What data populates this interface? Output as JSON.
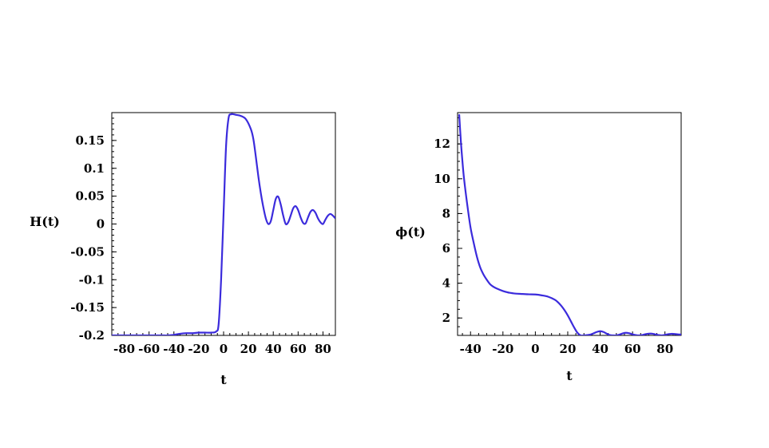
{
  "chart_data": [
    {
      "type": "line",
      "xlabel": "t",
      "ylabel": "H(t)",
      "xlim": [
        -90,
        90
      ],
      "ylim": [
        -0.2,
        0.2
      ],
      "xticks": [
        "-80",
        "-60",
        "-40",
        "-20",
        "0",
        "20",
        "40",
        "60",
        "80"
      ],
      "yticks": [
        "-0.2",
        "-0.15",
        "-0.1",
        "-0.05",
        "0",
        "0.05",
        "0.1",
        "0.15"
      ],
      "line_color": "#3b2bdc",
      "series": [
        {
          "x": [
            -90,
            -80,
            -70,
            -60,
            -50,
            -45,
            -40,
            -35,
            -30,
            -25,
            -20,
            -15,
            -10,
            -6,
            -4,
            -2,
            0,
            2,
            4,
            6,
            8,
            10,
            14,
            18,
            22,
            24,
            26,
            28,
            30,
            32,
            34,
            36,
            38,
            40,
            42,
            44,
            46,
            48,
            50,
            52,
            54,
            56,
            58,
            60,
            62,
            64,
            66,
            68,
            70,
            72,
            74,
            76,
            78,
            80,
            82,
            84,
            86,
            88,
            90
          ],
          "y": [
            -0.2,
            -0.2,
            -0.2,
            -0.2,
            -0.2,
            -0.2,
            -0.199,
            -0.197,
            -0.196,
            -0.196,
            -0.195,
            -0.195,
            -0.195,
            -0.193,
            -0.18,
            -0.1,
            0.02,
            0.14,
            0.19,
            0.197,
            0.197,
            0.196,
            0.194,
            0.188,
            0.17,
            0.152,
            0.12,
            0.085,
            0.055,
            0.03,
            0.01,
            0.0,
            0.005,
            0.025,
            0.045,
            0.049,
            0.035,
            0.015,
            0.0,
            0.003,
            0.015,
            0.028,
            0.032,
            0.025,
            0.012,
            0.002,
            0.001,
            0.012,
            0.022,
            0.025,
            0.02,
            0.01,
            0.003,
            0.0,
            0.008,
            0.015,
            0.018,
            0.015,
            0.01
          ]
        }
      ]
    },
    {
      "type": "line",
      "xlabel": "t",
      "ylabel": "ϕ(t)",
      "xlim": [
        -48,
        90
      ],
      "ylim": [
        1,
        13.8
      ],
      "xticks": [
        "-40",
        "-20",
        "0",
        "20",
        "40",
        "60",
        "80"
      ],
      "yticks": [
        "2",
        "4",
        "6",
        "8",
        "10",
        "12"
      ],
      "line_color": "#3b2bdc",
      "series": [
        {
          "x": [
            -47,
            -46,
            -45,
            -44,
            -42,
            -40,
            -38,
            -36,
            -34,
            -32,
            -30,
            -28,
            -26,
            -24,
            -20,
            -16,
            -12,
            -8,
            -4,
            0,
            4,
            8,
            12,
            14,
            16,
            18,
            20,
            22,
            24,
            26,
            28,
            30,
            32,
            34,
            36,
            38,
            40,
            42,
            44,
            46,
            48,
            50,
            52,
            54,
            56,
            58,
            60,
            62,
            64,
            66,
            68,
            70,
            72,
            74,
            76,
            78,
            80,
            82,
            84,
            86,
            88,
            90
          ],
          "y": [
            13.7,
            12.2,
            11.0,
            10.0,
            8.5,
            7.2,
            6.3,
            5.5,
            4.9,
            4.5,
            4.2,
            3.95,
            3.8,
            3.7,
            3.55,
            3.45,
            3.4,
            3.38,
            3.36,
            3.35,
            3.3,
            3.22,
            3.05,
            2.9,
            2.7,
            2.45,
            2.15,
            1.8,
            1.45,
            1.15,
            1.0,
            1.0,
            1.02,
            1.05,
            1.12,
            1.2,
            1.24,
            1.2,
            1.1,
            1.02,
            1.0,
            1.0,
            1.05,
            1.12,
            1.15,
            1.12,
            1.06,
            1.02,
            1.0,
            1.02,
            1.07,
            1.1,
            1.1,
            1.06,
            1.02,
            1.0,
            1.03,
            1.07,
            1.09,
            1.08,
            1.06,
            1.05
          ]
        }
      ]
    }
  ]
}
